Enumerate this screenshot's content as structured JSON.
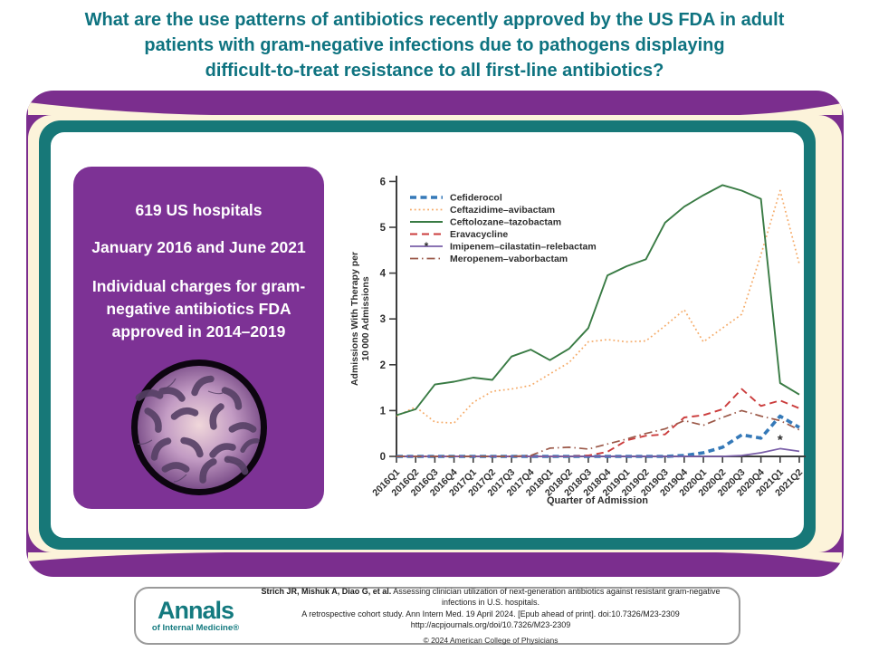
{
  "title": {
    "color": "#0e7380",
    "line1": "What are the use patterns of antibiotics recently approved by the US FDA in adult",
    "line2": "patients with gram-negative infections due to pathogens displaying",
    "line3": "difficult-to-treat resistance to all first-line antibiotics?"
  },
  "card_colors": {
    "purple": "#7b2e8e",
    "cream": "#fcf3da",
    "teal": "#177878",
    "inner": "#ffffff"
  },
  "stats_panel": {
    "background": "#7d3295",
    "line1": "619 US hospitals",
    "line2": "January 2016 and June 2021",
    "line3": "Individual charges for gram-negative antibiotics FDA approved in 2014–2019",
    "illustration": "petri-dish with gram-negative bacteria"
  },
  "chart_data": {
    "type": "line",
    "title": "",
    "xlabel": "Quarter of Admission",
    "ylabel_line1": "Admissions With Therapy per",
    "ylabel_line2": "10 000 Admissions",
    "ylim": [
      0,
      6
    ],
    "yticks": [
      0,
      1,
      2,
      3,
      4,
      5,
      6
    ],
    "grid": false,
    "legend_position": "top-left-inside",
    "categories": [
      "2016Q1",
      "2016Q2",
      "2016Q3",
      "2016Q4",
      "2017Q1",
      "2017Q2",
      "2017Q3",
      "2017Q4",
      "2018Q1",
      "2018Q2",
      "2018Q3",
      "2018Q4",
      "2019Q1",
      "2019Q2",
      "2019Q3",
      "2019Q4",
      "2020Q1",
      "2020Q2",
      "2020Q3",
      "2020Q4",
      "2021Q1",
      "2021Q2"
    ],
    "series": [
      {
        "name": "Cefiderocol",
        "color": "#3579b8",
        "style": "dashed-thick",
        "values": [
          0,
          0,
          0,
          0,
          0,
          0,
          0,
          0,
          0,
          0,
          0,
          0,
          0,
          0,
          0,
          0.02,
          0.08,
          0.2,
          0.47,
          0.4,
          0.88,
          0.63
        ]
      },
      {
        "name": "Ceftazidime–avibactam",
        "color": "#f5ab69",
        "style": "dotted",
        "values": [
          0.88,
          1.08,
          0.75,
          0.73,
          1.18,
          1.42,
          1.47,
          1.55,
          1.8,
          2.05,
          2.5,
          2.55,
          2.5,
          2.52,
          2.85,
          3.2,
          2.5,
          2.8,
          3.1,
          4.4,
          5.8,
          4.2
        ]
      },
      {
        "name": "Ceftolozane–tazobactam",
        "color": "#397b44",
        "style": "solid",
        "values": [
          0.9,
          1.03,
          1.57,
          1.63,
          1.72,
          1.67,
          2.18,
          2.33,
          2.1,
          2.35,
          2.8,
          3.95,
          4.15,
          4.3,
          5.1,
          5.45,
          5.7,
          5.92,
          5.8,
          5.62,
          1.6,
          1.35
        ]
      },
      {
        "name": "Eravacycline",
        "color": "#cb3d3d",
        "style": "dashed",
        "values": [
          0,
          0,
          0,
          0,
          0,
          0,
          0,
          0,
          0,
          0,
          0.02,
          0.1,
          0.35,
          0.45,
          0.48,
          0.85,
          0.9,
          1.03,
          1.47,
          1.1,
          1.22,
          1.05
        ]
      },
      {
        "name": "Imipenem–cilastatin–relebactam",
        "color": "#7a5fa8",
        "style": "solid-star",
        "values": [
          0,
          0,
          0,
          0,
          0,
          0,
          0,
          0,
          0,
          0,
          0,
          0,
          0,
          0,
          0,
          0,
          0,
          0,
          0.02,
          0.08,
          0.17,
          0.11
        ]
      },
      {
        "name": "Meropenem–vaborbactam",
        "color": "#9b5848",
        "style": "dashdot",
        "values": [
          0,
          0,
          0,
          0,
          0,
          0,
          0,
          0.02,
          0.18,
          0.2,
          0.16,
          0.27,
          0.38,
          0.5,
          0.6,
          0.78,
          0.68,
          0.85,
          1.0,
          0.88,
          0.78,
          0.58
        ]
      }
    ],
    "annotation": {
      "symbol": "*",
      "series": "Imipenem–cilastatin–relebactam",
      "category": "2021Q1"
    }
  },
  "footer": {
    "logo_main": "Annals",
    "logo_sub": "of Internal Medicine",
    "logo_reg": "®",
    "citation_bold": "Strich JR, Mishuk A, Diao G, et al.",
    "citation_rest": " Assessing clinician utilization of next-generation antibiotics against resistant gram-negative infections in U.S. hospitals.",
    "citation_line2": "A retrospective cohort study. Ann Intern Med. 19 April 2024. [Epub ahead of print]. doi:10.7326/M23-2309",
    "citation_line3": "http://acpjournals.org/doi/10.7326/M23-2309",
    "copyright": "© 2024 American College of Physicians"
  }
}
